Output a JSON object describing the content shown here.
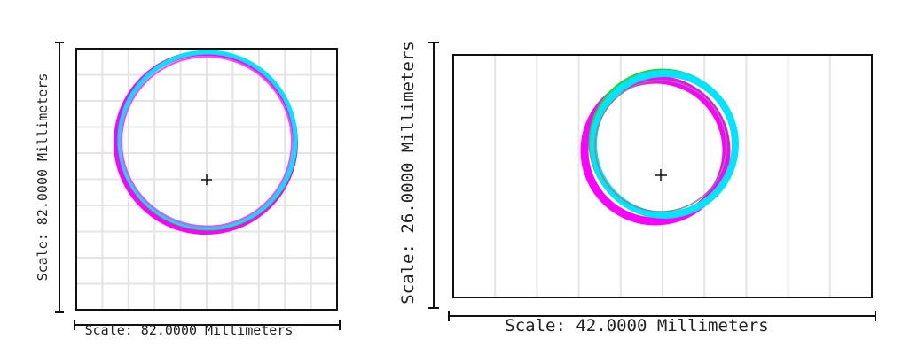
{
  "panels": [
    {
      "vertical_scale": "Scale: 82.0000 Millimeters",
      "horizontal_scale": "Scale: 82.0000 Millimeters"
    },
    {
      "vertical_scale": "Scale: 26.0000 Millimeters",
      "horizontal_scale": "Scale: 42.0000 Millimeters"
    }
  ]
}
